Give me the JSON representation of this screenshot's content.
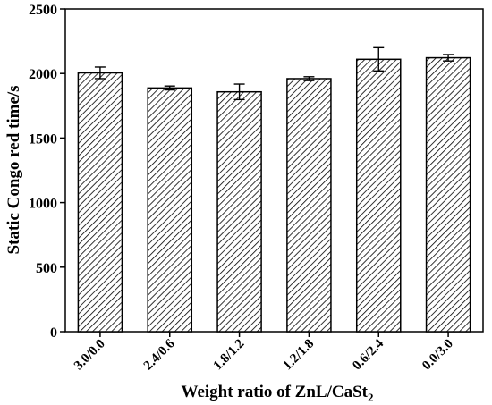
{
  "chart_data": {
    "type": "bar",
    "title": "",
    "ylabel": "Static Congo red time/s",
    "xlabel_prefix": "Weight ratio of ZnL/CaSt",
    "xlabel_subscript": "2",
    "categories": [
      "3.0/0.0",
      "2.4/0.6",
      "1.8/1.2",
      "1.2/1.8",
      "0.6/2.4",
      "0.0/3.0"
    ],
    "values": [
      2005,
      1888,
      1858,
      1960,
      2110,
      2122
    ],
    "errors": [
      45,
      15,
      60,
      15,
      90,
      25
    ],
    "ylim": [
      0,
      2500
    ],
    "yticks": [
      0,
      500,
      1000,
      1500,
      2000,
      2500
    ],
    "bar_fill": "hatched",
    "colors": {
      "bar_edge": "#000000",
      "hatch": "#000000",
      "background": "#ffffff"
    }
  }
}
